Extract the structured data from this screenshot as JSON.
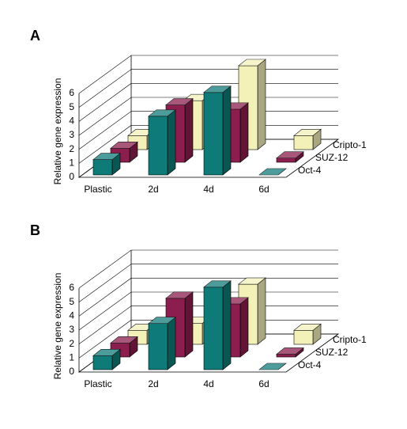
{
  "chart_data": [
    {
      "type": "bar3d",
      "panel": "A",
      "ylabel": "Relative gene expression",
      "categories": [
        "Plastic",
        "2d",
        "4d",
        "6d"
      ],
      "series": [
        {
          "name": "Oct-4",
          "color": "#0f7b78",
          "values": [
            1.1,
            4.2,
            5.9,
            0
          ]
        },
        {
          "name": "SUZ-12",
          "color": "#8b1e4e",
          "values": [
            1,
            4.1,
            3.8,
            0.3
          ]
        },
        {
          "name": "Cripto-1",
          "color": "#f3f0b8",
          "values": [
            1,
            3.5,
            6,
            1
          ]
        }
      ],
      "ylim": [
        0,
        6
      ],
      "yticks": [
        0,
        1,
        2,
        3,
        4,
        5,
        6
      ],
      "grid": true
    },
    {
      "type": "bar3d",
      "panel": "B",
      "ylabel": "Relative gene expression",
      "categories": [
        "Plastic",
        "2d",
        "4d",
        "6d"
      ],
      "series": [
        {
          "name": "Oct-4",
          "color": "#0f7b78",
          "values": [
            1,
            3.3,
            5.9,
            0
          ]
        },
        {
          "name": "SUZ-12",
          "color": "#8b1e4e",
          "values": [
            1,
            4.2,
            3.8,
            0.2
          ]
        },
        {
          "name": "Cripto-1",
          "color": "#f3f0b8",
          "values": [
            1,
            1.5,
            4.3,
            1
          ]
        }
      ],
      "ylim": [
        0,
        6
      ],
      "yticks": [
        0,
        1,
        2,
        3,
        4,
        5,
        6
      ],
      "grid": true
    }
  ]
}
